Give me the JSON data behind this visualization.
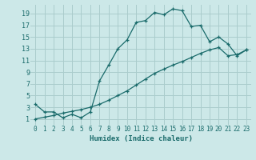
{
  "title": "",
  "xlabel": "Humidex (Indice chaleur)",
  "ylabel": "",
  "bg_color": "#cce8e8",
  "grid_color": "#aacccc",
  "line_color": "#1a6b6b",
  "xlim": [
    -0.5,
    23.5
  ],
  "ylim": [
    0,
    20.5
  ],
  "xticks": [
    0,
    1,
    2,
    3,
    4,
    5,
    6,
    7,
    8,
    9,
    10,
    11,
    12,
    13,
    14,
    15,
    16,
    17,
    18,
    19,
    20,
    21,
    22,
    23
  ],
  "yticks": [
    1,
    3,
    5,
    7,
    9,
    11,
    13,
    15,
    17,
    19
  ],
  "line1_x": [
    0,
    1,
    2,
    3,
    4,
    5,
    6,
    7,
    8,
    9,
    10,
    11,
    12,
    13,
    14,
    15,
    16,
    17,
    18,
    19,
    20,
    21,
    22,
    23
  ],
  "line1_y": [
    3.5,
    2.2,
    2.2,
    1.2,
    1.8,
    1.2,
    2.2,
    7.5,
    10.2,
    13.0,
    14.5,
    17.5,
    17.8,
    19.2,
    18.8,
    19.8,
    19.5,
    16.8,
    17.0,
    14.2,
    15.0,
    13.8,
    11.8,
    12.8
  ],
  "line2_x": [
    0,
    1,
    2,
    3,
    4,
    5,
    6,
    7,
    8,
    9,
    10,
    11,
    12,
    13,
    14,
    15,
    16,
    17,
    18,
    19,
    20,
    21,
    22,
    23
  ],
  "line2_y": [
    1.0,
    1.3,
    1.6,
    2.0,
    2.3,
    2.6,
    3.0,
    3.5,
    4.2,
    5.0,
    5.8,
    6.8,
    7.8,
    8.8,
    9.5,
    10.2,
    10.8,
    11.5,
    12.2,
    12.8,
    13.2,
    11.8,
    12.0,
    12.8
  ]
}
